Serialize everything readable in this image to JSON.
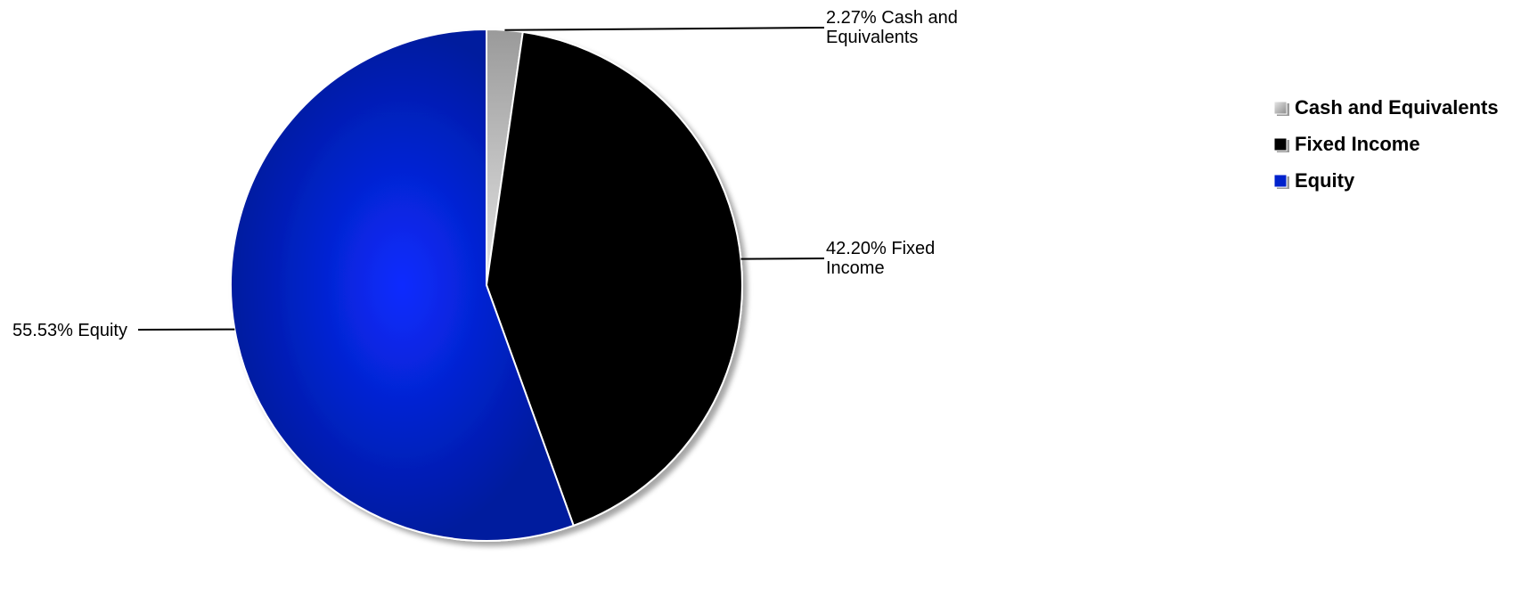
{
  "chart_data": {
    "type": "pie",
    "title": "",
    "slices": [
      {
        "name": "Cash and Equivalents",
        "value": 2.27,
        "label": [
          "2.27% Cash and",
          "Equivalents"
        ],
        "color": "#c0c0c0"
      },
      {
        "name": "Fixed Income",
        "value": 42.2,
        "label": [
          "42.20% Fixed",
          "Income"
        ],
        "color": "#000000"
      },
      {
        "name": "Equity",
        "value": 55.53,
        "label": [
          "55.53% Equity"
        ],
        "color": "#0022cc"
      }
    ],
    "legend": {
      "position": "right",
      "items": [
        "Cash and Equivalents",
        "Fixed Income",
        "Equity"
      ]
    },
    "start_angle": "12 o'clock",
    "direction": "clockwise"
  }
}
